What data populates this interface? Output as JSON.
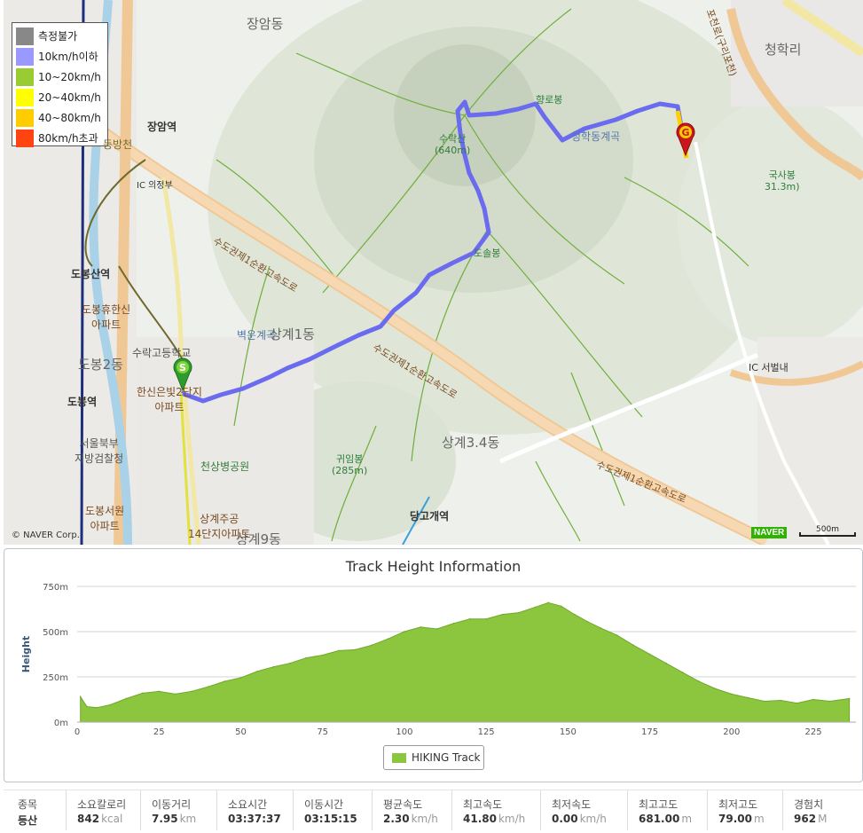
{
  "map": {
    "legend": [
      {
        "label": "측정불가",
        "color": "#888888"
      },
      {
        "label": "10km/h이하",
        "color": "#9999ff"
      },
      {
        "label": "10~20km/h",
        "color": "#99cc33"
      },
      {
        "label": "20~40km/h",
        "color": "#ffff00"
      },
      {
        "label": "40~80km/h",
        "color": "#ffcc00"
      },
      {
        "label": "80km/h초과",
        "color": "#ff4411"
      }
    ],
    "places": {
      "jangam_dong": "장암동",
      "cheonghak_ri": "청학리",
      "jangam_station": "장암역",
      "dangcheon": "동방천",
      "ic_uijeongbu": "IC 의정부",
      "dobongsan_station": "도봉산역",
      "dobong_apt": "도봉휴한신\n아파트",
      "suraksan_school": "수락고등학교",
      "dobong2dong": "도봉2동",
      "dobong_station": "도봉역",
      "hanshin_apt": "한신은빛2단지\n아파트",
      "seoul_north_prosecutor": "서울북부\n지방검찰청",
      "dobong_seowon_apt": "도봉서원\n아파트",
      "cheonsangbyeong_park": "천상병공원",
      "sanggye_apt": "상계주공\n14단지아파트",
      "sanggye9dong": "상계9동",
      "sanggye34dong": "상계3.4동",
      "danggogae_station": "당고개역",
      "byeogun_valley": "벽운계곡",
      "sanggye1dong": "상계1동",
      "cheongseong_valley": "청학동계곡",
      "ic_seobullae": "IC 서벌내",
      "suraksan_peak": "수락산\n(640m)",
      "hyangrobong": "향로봉",
      "doljibong": "도솔봉",
      "guksabong": "국사봉\n31.3m)",
      "guimbong": "귀임봉\n(285m)"
    },
    "road_labels": {
      "ring_road_1": "수도권제1순환고속도로",
      "ring_road_2": "수도권제1순환고속도로",
      "ring_road_3": "수도권제1순환고속도로",
      "route_43": "포천로(구리포천)"
    },
    "logo": "NAVER",
    "scale": "500m",
    "copyright": "© NAVER Corp."
  },
  "chart": {
    "title": "Track Height Information",
    "legend": "HIKING Track"
  },
  "chart_data": {
    "type": "area",
    "title": "Track Height Information",
    "xlabel": "",
    "ylabel": "Height",
    "xlim": [
      0,
      238
    ],
    "ylim": [
      0,
      750
    ],
    "x_ticks": [
      0,
      25,
      50,
      75,
      100,
      125,
      150,
      175,
      200,
      225
    ],
    "y_ticks": [
      0,
      250,
      500,
      750
    ],
    "y_tick_labels": [
      "0m",
      "250m",
      "500m",
      "750m"
    ],
    "grid": true,
    "legend_position": "bottom-center",
    "series": [
      {
        "name": "HIKING Track",
        "color": "#8cc63f",
        "x": [
          1,
          3,
          6,
          10,
          15,
          20,
          25,
          30,
          35,
          40,
          45,
          50,
          55,
          60,
          65,
          70,
          75,
          80,
          85,
          90,
          95,
          100,
          105,
          110,
          115,
          120,
          125,
          130,
          135,
          140,
          144,
          148,
          152,
          156,
          160,
          165,
          170,
          175,
          180,
          185,
          190,
          195,
          200,
          205,
          210,
          215,
          220,
          225,
          230,
          236
        ],
        "y": [
          140,
          85,
          80,
          95,
          130,
          160,
          170,
          155,
          170,
          195,
          225,
          245,
          280,
          305,
          325,
          355,
          370,
          395,
          400,
          425,
          460,
          500,
          525,
          515,
          545,
          570,
          570,
          595,
          605,
          635,
          660,
          640,
          595,
          555,
          520,
          480,
          425,
          375,
          325,
          275,
          225,
          185,
          155,
          135,
          115,
          120,
          105,
          125,
          115,
          130
        ]
      }
    ]
  },
  "stats": [
    {
      "label": "종목",
      "value": "등산",
      "unit": ""
    },
    {
      "label": "소요칼로리",
      "value": "842",
      "unit": "kcal"
    },
    {
      "label": "이동거리",
      "value": "7.95",
      "unit": "km"
    },
    {
      "label": "소요시간",
      "value": "03:37:37",
      "unit": ""
    },
    {
      "label": "이동시간",
      "value": "03:15:15",
      "unit": ""
    },
    {
      "label": "평균속도",
      "value": "2.30",
      "unit": "km/h"
    },
    {
      "label": "최고속도",
      "value": "41.80",
      "unit": "km/h"
    },
    {
      "label": "최저속도",
      "value": "0.00",
      "unit": "km/h"
    },
    {
      "label": "최고고도",
      "value": "681.00",
      "unit": "m"
    },
    {
      "label": "최저고도",
      "value": "79.00",
      "unit": "m"
    },
    {
      "label": "경험치",
      "value": "962",
      "unit": "M"
    }
  ]
}
